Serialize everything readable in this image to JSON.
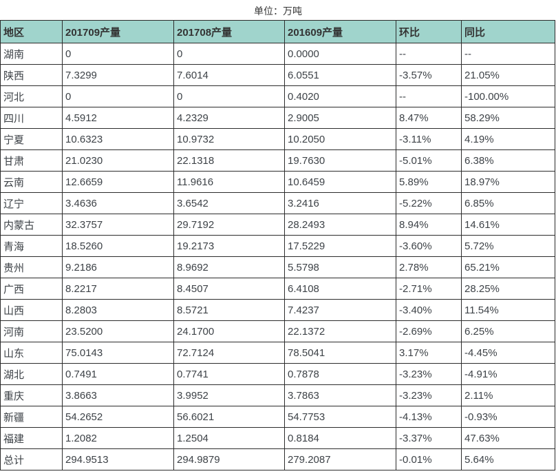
{
  "unit_label": "单位：万吨",
  "colors": {
    "header_bg": "#a0d4cc",
    "border": "#2b2b2b",
    "header_text": "#333333",
    "body_text": "#3d4247",
    "page_bg": "#ffffff"
  },
  "chart_data": {
    "type": "table",
    "title": "单位：万吨",
    "columns": [
      "地区",
      "201709产量",
      "201708产量",
      "201609产量",
      "环比",
      "同比"
    ],
    "rows": [
      [
        "湖南",
        "0",
        "0",
        "0.0000",
        "--",
        "--"
      ],
      [
        "陕西",
        "7.3299",
        "7.6014",
        "6.0551",
        "-3.57%",
        "21.05%"
      ],
      [
        "河北",
        "0",
        "0",
        "0.4020",
        "--",
        "-100.00%"
      ],
      [
        "四川",
        "4.5912",
        "4.2329",
        "2.9005",
        "8.47%",
        "58.29%"
      ],
      [
        "宁夏",
        "10.6323",
        "10.9732",
        "10.2050",
        "-3.11%",
        "4.19%"
      ],
      [
        "甘肃",
        "21.0230",
        "22.1318",
        "19.7630",
        "-5.01%",
        "6.38%"
      ],
      [
        "云南",
        "12.6659",
        "11.9616",
        "10.6459",
        "5.89%",
        "18.97%"
      ],
      [
        "辽宁",
        "3.4636",
        "3.6542",
        "3.2416",
        "-5.22%",
        "6.85%"
      ],
      [
        "内蒙古",
        "32.3757",
        "29.7192",
        "28.2493",
        "8.94%",
        "14.61%"
      ],
      [
        "青海",
        "18.5260",
        "19.2173",
        "17.5229",
        "-3.60%",
        "5.72%"
      ],
      [
        "贵州",
        "9.2186",
        "8.9692",
        "5.5798",
        "2.78%",
        "65.21%"
      ],
      [
        "广西",
        "8.2217",
        "8.4507",
        "6.4108",
        "-2.71%",
        "28.25%"
      ],
      [
        "山西",
        "8.2803",
        "8.5721",
        "7.4237",
        "-3.40%",
        "11.54%"
      ],
      [
        "河南",
        "23.5200",
        "24.1700",
        "22.1372",
        "-2.69%",
        "6.25%"
      ],
      [
        "山东",
        "75.0143",
        "72.7124",
        "78.5041",
        "3.17%",
        "-4.45%"
      ],
      [
        "湖北",
        "0.7491",
        "0.7741",
        "0.7878",
        "-3.23%",
        "-4.91%"
      ],
      [
        "重庆",
        "3.8663",
        "3.9952",
        "3.7863",
        "-3.23%",
        "2.11%"
      ],
      [
        "新疆",
        "54.2652",
        "56.6021",
        "54.7753",
        "-4.13%",
        "-0.93%"
      ],
      [
        "福建",
        "1.2082",
        "1.2504",
        "0.8184",
        "-3.37%",
        "47.63%"
      ],
      [
        "总计",
        "294.9513",
        "294.9879",
        "279.2087",
        "-0.01%",
        "5.64%"
      ]
    ]
  }
}
